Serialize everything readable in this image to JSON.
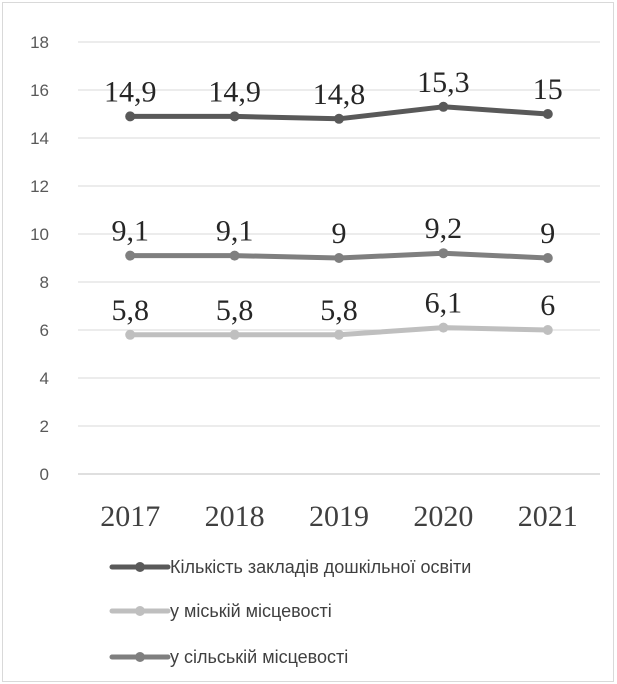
{
  "chart_data": {
    "type": "line",
    "title": "",
    "xlabel": "",
    "ylabel": "",
    "categories": [
      "2017",
      "2018",
      "2019",
      "2020",
      "2021"
    ],
    "ylim": [
      0,
      18
    ],
    "yticks": [
      0,
      2,
      4,
      6,
      8,
      10,
      12,
      14,
      16,
      18
    ],
    "grid": true,
    "legend_position": "bottom",
    "series": [
      {
        "name": "Кількість закладів дошкільної освіти",
        "values": [
          14.9,
          14.9,
          14.8,
          15.3,
          15
        ],
        "labels": [
          "14,9",
          "14,9",
          "14,8",
          "15,3",
          "15"
        ],
        "color": "#595959"
      },
      {
        "name": "у міській місцевості",
        "values": [
          5.8,
          5.8,
          5.8,
          6.1,
          6
        ],
        "labels": [
          "5,8",
          "5,8",
          "5,8",
          "6,1",
          "6"
        ],
        "color": "#bfbfbf"
      },
      {
        "name": "у сільській місцевості",
        "values": [
          9.1,
          9.1,
          9,
          9.2,
          9
        ],
        "labels": [
          "9,1",
          "9,1",
          "9",
          "9,2",
          "9"
        ],
        "color": "#7f7f7f"
      }
    ]
  }
}
